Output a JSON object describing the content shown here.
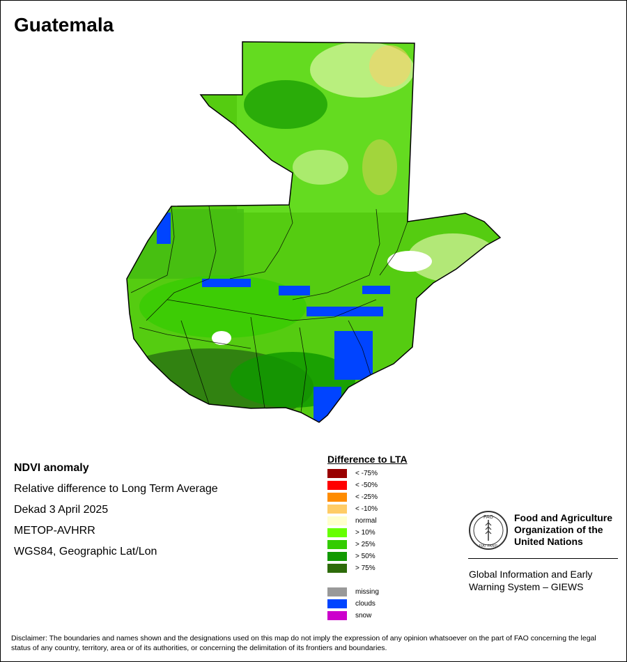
{
  "title": "Guatemala",
  "info": {
    "product": "NDVI anomaly",
    "description": "Relative difference to Long Term Average",
    "period": "Dekad 3 April 2025",
    "sensor": "METOP-AVHRR",
    "projection": "WGS84, Geographic Lat/Lon"
  },
  "legend": {
    "title": "Difference to LTA",
    "items": [
      {
        "label": "< -75%",
        "color": "#990000"
      },
      {
        "label": "< -50%",
        "color": "#ff0000"
      },
      {
        "label": "< -25%",
        "color": "#ff8c00"
      },
      {
        "label": "< -10%",
        "color": "#ffcc66"
      },
      {
        "label": "normal",
        "color": "#ffffcc"
      },
      {
        "label": "> 10%",
        "color": "#66ff00"
      },
      {
        "label": "> 25%",
        "color": "#33cc00"
      },
      {
        "label": "> 50%",
        "color": "#119900"
      },
      {
        "label": "> 75%",
        "color": "#2d6b0a"
      }
    ],
    "extra": [
      {
        "label": "missing",
        "color": "#999999"
      },
      {
        "label": "clouds",
        "color": "#0044ff"
      },
      {
        "label": "snow",
        "color": "#cc00cc"
      }
    ]
  },
  "logo": {
    "org_line1": "Food and Agriculture",
    "org_line2": "Organization of the",
    "org_line3": "United Nations",
    "emblem_text": "FAO",
    "emblem_motto": "FIAT PANIS",
    "system_line1": "Global Information and Early",
    "system_line2": "Warning System – GIEWS"
  },
  "disclaimer": "Disclaimer: The boundaries and names shown and the designations used on this map do not imply the expression of any opinion whatsoever on the part of FAO concerning the legal status of any country, territory, area or of its authorities, or concerning the delimitation of its frontiers and boundaries.",
  "colors": {
    "base": "#55cc11",
    "light": "#77ee22",
    "dark": "#2d7a12",
    "clouds": "#0044ff",
    "normal": "#ffffcc",
    "deficit": "#ffcc66",
    "white": "#ffffff"
  }
}
